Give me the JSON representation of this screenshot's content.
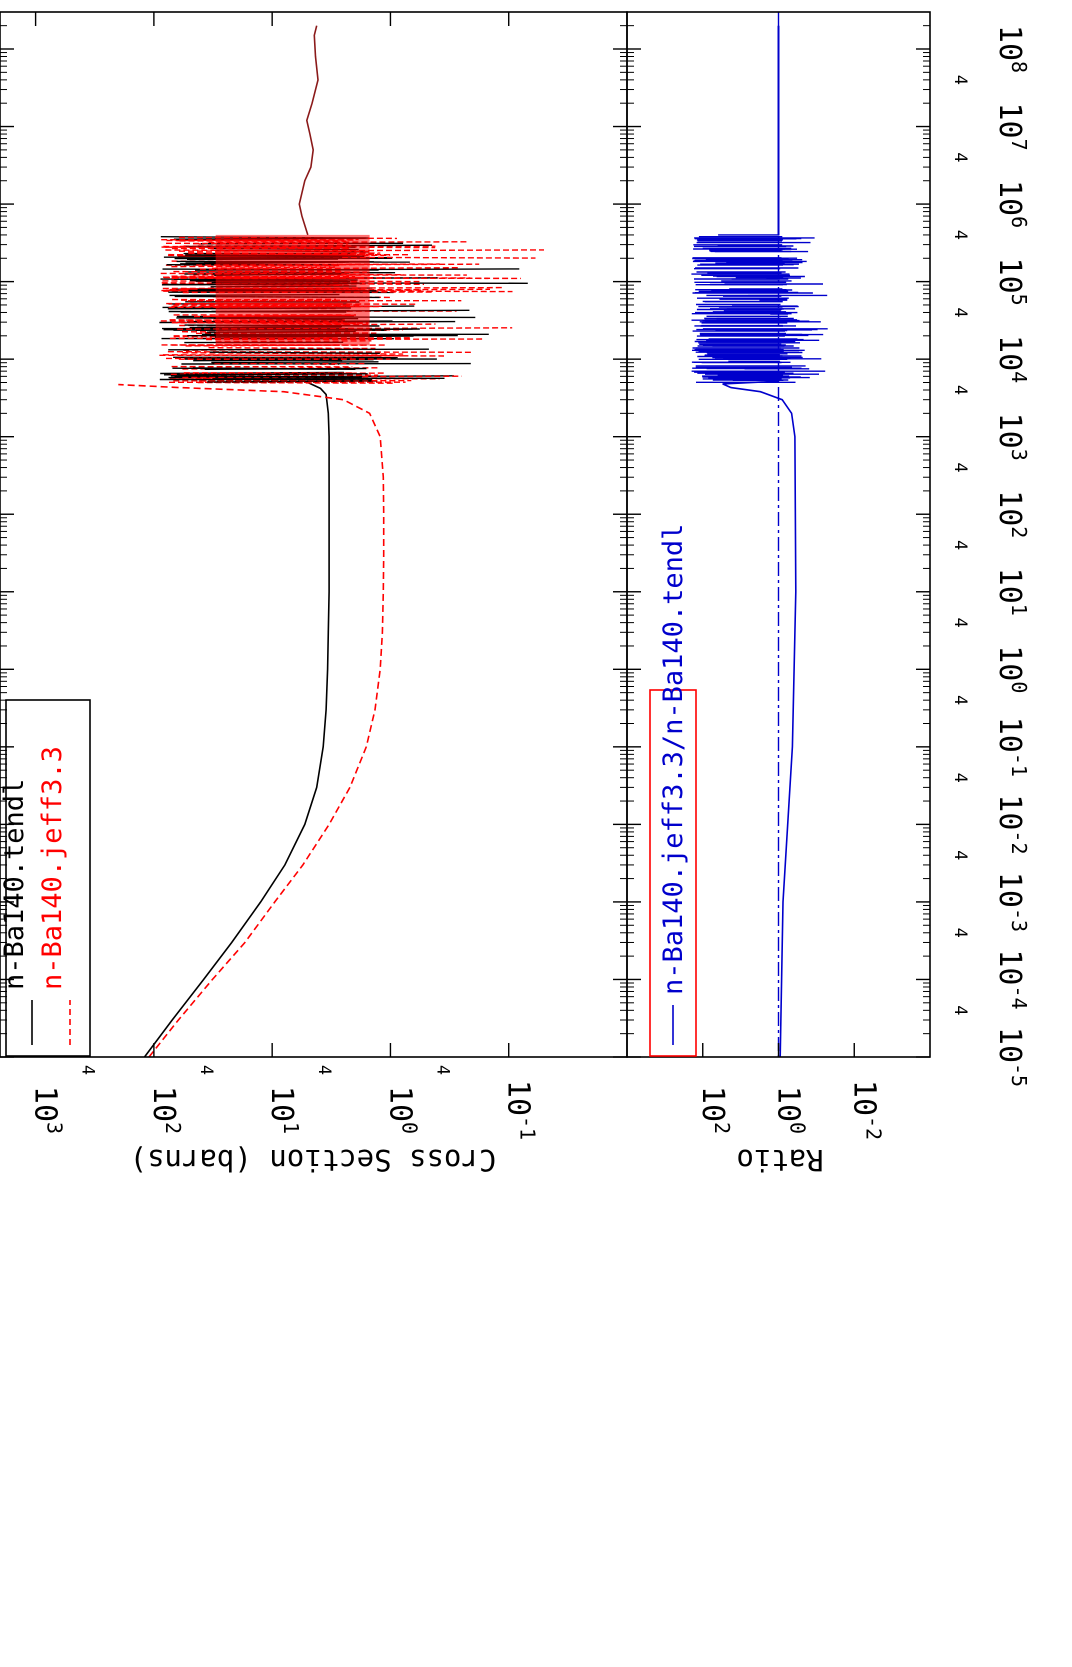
{
  "chart_data": [
    {
      "type": "line",
      "panel": "cross-section",
      "orientation": "rotated 90 degrees clockwise (energy axis runs top-to-bottom along the right edge)",
      "xscale": "log",
      "yscale": "log",
      "xlim": [
        1e-05,
        300000000
      ],
      "ylim": [
        0.01,
        2000
      ],
      "ylabel": "Cross Section (barns)",
      "y_ticks": [
        {
          "value": 0.1,
          "base": "10",
          "exp": "-1"
        },
        {
          "value": 1,
          "base": "10",
          "exp": "0"
        },
        {
          "value": 10,
          "base": "10",
          "exp": "1"
        },
        {
          "value": 100,
          "base": "10",
          "exp": "2"
        },
        {
          "value": 1000,
          "base": "10",
          "exp": "3"
        }
      ],
      "y_minor_label": "4",
      "legend": {
        "placement": "top-left"
      },
      "series": [
        {
          "name": "n-Ba140.tendl",
          "color": "#000000",
          "dash": "solid",
          "x": [
            1e-05,
            3e-05,
            0.0001,
            0.0003,
            0.001,
            0.003,
            0.01,
            0.03,
            0.1,
            0.3,
            1,
            3,
            10,
            30,
            100,
            300,
            1000,
            2000,
            3500,
            4200,
            5000
          ],
          "y": [
            120,
            70,
            38,
            22,
            12.5,
            7.8,
            5.3,
            4.2,
            3.7,
            3.5,
            3.4,
            3.35,
            3.3,
            3.3,
            3.3,
            3.3,
            3.3,
            3.35,
            3.5,
            3.9,
            5
          ]
        },
        {
          "name": "n-Ba140.jeff3.3",
          "color": "#ff0000",
          "dash": "dashed",
          "x": [
            1e-05,
            3e-05,
            0.0001,
            0.0003,
            0.001,
            0.003,
            0.01,
            0.03,
            0.1,
            0.3,
            1,
            3,
            10,
            30,
            100,
            300,
            1000,
            2000,
            3000,
            3800,
            4300,
            4700
          ],
          "y": [
            110,
            62,
            32,
            17,
            9.5,
            5.5,
            3.3,
            2.2,
            1.6,
            1.35,
            1.22,
            1.17,
            1.15,
            1.14,
            1.14,
            1.15,
            1.22,
            1.5,
            2.5,
            8,
            60,
            200
          ]
        }
      ],
      "high_energy_tail": {
        "x": [
          400000,
          700000,
          1000000,
          2000000,
          3000000,
          5000000,
          8000000,
          12000000,
          20000000,
          40000000,
          80000000,
          150000000,
          200000000
        ],
        "y": [
          5,
          5.6,
          5.9,
          5.3,
          4.7,
          4.5,
          4.8,
          5.1,
          4.6,
          4.1,
          4.3,
          4.4,
          4.2
        ]
      },
      "resonance_region": [
        5000,
        400000
      ]
    },
    {
      "type": "line",
      "panel": "ratio",
      "xscale": "log",
      "yscale": "log",
      "xlim": [
        1e-05,
        300000000
      ],
      "ylim": [
        0.0001,
        10000
      ],
      "ylabel": "Ratio",
      "y_ticks": [
        {
          "value": 0.01,
          "base": "10",
          "exp": "-2"
        },
        {
          "value": 1,
          "base": "10",
          "exp": "0"
        },
        {
          "value": 100,
          "base": "10",
          "exp": "2"
        }
      ],
      "legend": {
        "placement": "top-left"
      },
      "series": [
        {
          "name": "n-Ba140.jeff3.3/n-Ba140.tendl",
          "color": "#0000cc",
          "dash": "solid",
          "x": [
            1e-05,
            0.001,
            0.1,
            10,
            1000,
            2000,
            3000,
            3800,
            4300,
            4800,
            5200
          ],
          "y": [
            0.9,
            0.76,
            0.43,
            0.35,
            0.37,
            0.45,
            0.8,
            3,
            18,
            30,
            1
          ]
        }
      ],
      "reference_line": {
        "y": 1,
        "dash": "dash-dot"
      }
    }
  ],
  "x_ticks": [
    {
      "value": 1e-05,
      "base": "10",
      "exp": "-5"
    },
    {
      "value": 0.0001,
      "base": "10",
      "exp": "-4"
    },
    {
      "value": 0.001,
      "base": "10",
      "exp": "-3"
    },
    {
      "value": 0.01,
      "base": "10",
      "exp": "-2"
    },
    {
      "value": 0.1,
      "base": "10",
      "exp": "-1"
    },
    {
      "value": 1,
      "base": "10",
      "exp": "0"
    },
    {
      "value": 10,
      "base": "10",
      "exp": "1"
    },
    {
      "value": 100,
      "base": "10",
      "exp": "2"
    },
    {
      "value": 1000,
      "base": "10",
      "exp": "3"
    },
    {
      "value": 10000,
      "base": "10",
      "exp": "4"
    },
    {
      "value": 100000,
      "base": "10",
      "exp": "5"
    },
    {
      "value": 1000000,
      "base": "10",
      "exp": "6"
    },
    {
      "value": 10000000,
      "base": "10",
      "exp": "7"
    },
    {
      "value": 100000000,
      "base": "10",
      "exp": "8"
    }
  ],
  "x_minor_label": "4",
  "colors": {
    "axis": "#000000",
    "tendl": "#000000",
    "jeff": "#ff0000",
    "ratio": "#0000cc",
    "ratio_legend_box": "#ff0000"
  }
}
